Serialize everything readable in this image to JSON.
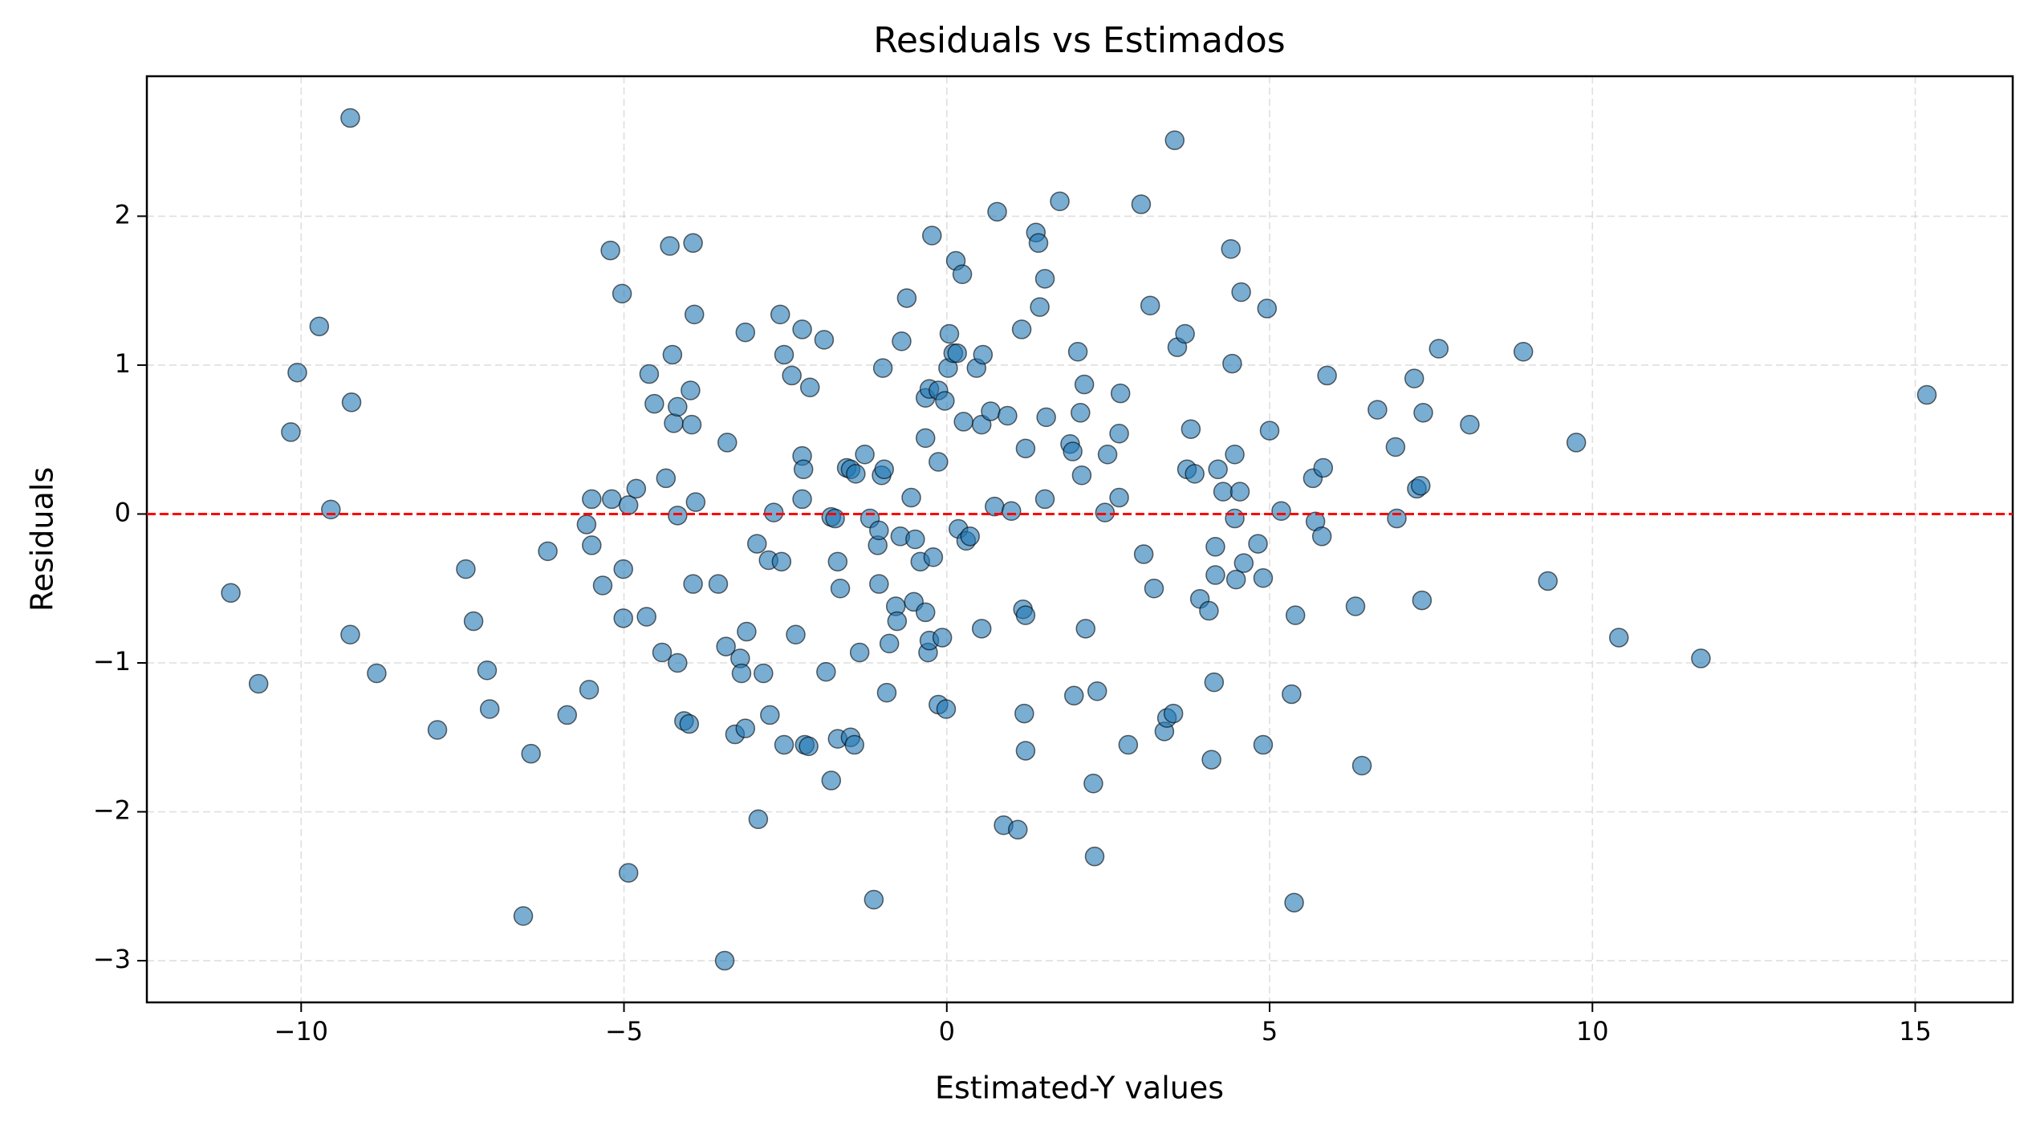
{
  "chart_data": {
    "type": "scatter",
    "title": "Residuals vs Estimados",
    "xlabel": "Estimated-Y values",
    "ylabel": "Residuals",
    "xlim": [
      -12.39,
      16.51
    ],
    "ylim": [
      -3.28,
      2.94
    ],
    "xticks": [
      {
        "value": -10,
        "label": "−10"
      },
      {
        "value": -5,
        "label": "−5"
      },
      0,
      5,
      10,
      15
    ],
    "yticks": [
      {
        "value": -3,
        "label": "−3"
      },
      {
        "value": -2,
        "label": "−2"
      },
      {
        "value": -1,
        "label": "−1"
      },
      0,
      1,
      2
    ],
    "grid": true,
    "hline": 0,
    "hline_color": "#ff0000",
    "series": [
      {
        "color": "#1f77b4",
        "x": [
          -11.09,
          -10.66,
          -10.16,
          -10.06,
          -9.72,
          -9.54,
          -9.24,
          -9.22,
          -9.24,
          -8.83,
          -7.89,
          -7.45,
          -7.33,
          -7.12,
          -7.08,
          -6.44,
          -6.56,
          -6.18,
          -5.88,
          -5.58,
          -5.5,
          -5.5,
          -5.54,
          -5.33,
          -5.21,
          -5.19,
          -5.03,
          -5.01,
          -5.01,
          -4.93,
          -4.93,
          -4.81,
          -4.65,
          -4.61,
          -4.53,
          -4.41,
          -4.35,
          -4.29,
          -4.25,
          -4.23,
          -4.17,
          -4.17,
          -4.17,
          -4.07,
          -3.99,
          -3.97,
          -3.95,
          -3.93,
          -3.91,
          -3.89,
          -3.93,
          -3.54,
          -3.4,
          -3.42,
          -3.44,
          -3.28,
          -3.2,
          -3.18,
          -3.12,
          -3.1,
          -3.12,
          -2.94,
          -2.92,
          -2.84,
          -2.76,
          -2.74,
          -2.68,
          -2.58,
          -2.56,
          -2.52,
          -2.52,
          -2.4,
          -2.34,
          -2.24,
          -2.24,
          -2.24,
          -2.22,
          -2.2,
          -2.12,
          -2.14,
          -1.9,
          -1.87,
          -1.79,
          -1.79,
          -1.73,
          -1.69,
          -1.69,
          -1.65,
          -1.55,
          -1.49,
          -1.49,
          -1.43,
          -1.41,
          -1.35,
          -1.27,
          -1.19,
          -1.13,
          -1.07,
          -1.05,
          -1.05,
          -1.01,
          -0.99,
          -0.97,
          -0.93,
          -0.89,
          -0.79,
          -0.77,
          -0.7,
          -0.72,
          -0.62,
          -0.55,
          -0.51,
          -0.49,
          -0.41,
          -0.33,
          -0.33,
          -0.33,
          -0.29,
          -0.27,
          -0.27,
          -0.23,
          -0.21,
          -0.13,
          -0.13,
          -0.13,
          -0.07,
          -0.03,
          -0.01,
          0.02,
          0.04,
          0.1,
          0.14,
          0.16,
          0.18,
          0.24,
          0.26,
          0.3,
          0.36,
          0.46,
          0.54,
          0.54,
          0.56,
          0.68,
          0.74,
          0.78,
          0.88,
          0.94,
          1.0,
          1.1,
          1.16,
          1.18,
          1.22,
          1.22,
          1.2,
          1.22,
          1.38,
          1.42,
          1.44,
          1.52,
          1.54,
          1.52,
          1.75,
          1.91,
          1.95,
          1.97,
          2.03,
          2.07,
          2.09,
          2.13,
          2.15,
          2.27,
          2.29,
          2.33,
          2.45,
          2.49,
          2.67,
          2.69,
          2.67,
          2.81,
          3.01,
          3.05,
          3.15,
          3.21,
          3.37,
          3.41,
          3.51,
          3.53,
          3.57,
          3.69,
          3.72,
          3.78,
          3.84,
          3.92,
          4.06,
          4.1,
          4.14,
          4.16,
          4.16,
          4.2,
          4.28,
          4.4,
          4.42,
          4.46,
          4.46,
          4.48,
          4.54,
          4.56,
          4.6,
          4.82,
          4.9,
          4.9,
          4.96,
          5.0,
          5.18,
          5.34,
          5.38,
          5.4,
          5.67,
          5.71,
          5.81,
          5.83,
          5.89,
          6.33,
          6.43,
          6.67,
          6.95,
          6.97,
          7.24,
          7.28,
          7.34,
          7.38,
          7.36,
          7.62,
          8.1,
          8.93,
          9.31,
          9.75,
          10.41,
          11.68,
          15.18
        ],
        "values": [
          -0.53,
          -1.14,
          0.55,
          0.95,
          1.26,
          0.03,
          2.66,
          0.75,
          -0.81,
          -1.07,
          -1.45,
          -0.37,
          -0.72,
          -1.05,
          -1.31,
          -1.61,
          -2.7,
          -0.25,
          -1.35,
          -0.07,
          0.1,
          -0.21,
          -1.18,
          -0.48,
          1.77,
          0.1,
          1.48,
          -0.37,
          -0.7,
          0.06,
          -2.41,
          0.17,
          -0.69,
          0.94,
          0.74,
          -0.93,
          0.24,
          1.8,
          1.07,
          0.61,
          0.72,
          -0.01,
          -1.0,
          -1.39,
          -1.41,
          0.83,
          0.6,
          1.82,
          1.34,
          0.08,
          -0.47,
          -0.47,
          0.48,
          -0.89,
          -3.0,
          -1.48,
          -0.97,
          -1.07,
          1.22,
          -0.79,
          -1.44,
          -0.2,
          -2.05,
          -1.07,
          -0.31,
          -1.35,
          0.01,
          1.34,
          -0.32,
          1.07,
          -1.55,
          0.93,
          -0.81,
          1.24,
          0.39,
          0.1,
          0.3,
          -1.55,
          0.85,
          -1.56,
          1.17,
          -1.06,
          -1.79,
          -0.02,
          -0.03,
          -0.32,
          -1.51,
          -0.5,
          0.31,
          0.3,
          -1.5,
          -1.55,
          0.27,
          -0.93,
          0.4,
          -0.03,
          -2.59,
          -0.21,
          -0.11,
          -0.47,
          0.26,
          0.98,
          0.3,
          -1.2,
          -0.87,
          -0.62,
          -0.72,
          1.16,
          -0.15,
          1.45,
          0.11,
          -0.59,
          -0.17,
          -0.32,
          0.51,
          0.78,
          -0.66,
          -0.93,
          0.84,
          -0.85,
          1.87,
          -0.29,
          0.83,
          0.35,
          -1.28,
          -0.83,
          0.76,
          -1.31,
          0.98,
          1.21,
          1.08,
          1.7,
          1.08,
          -0.1,
          1.61,
          0.62,
          -0.18,
          -0.15,
          0.98,
          -0.77,
          0.6,
          1.07,
          0.69,
          0.05,
          2.03,
          -2.09,
          0.66,
          0.02,
          -2.12,
          1.24,
          -0.64,
          0.44,
          -0.68,
          -1.34,
          -1.59,
          1.89,
          1.82,
          1.39,
          1.58,
          0.65,
          0.1,
          2.1,
          0.47,
          0.42,
          -1.22,
          1.09,
          0.68,
          0.26,
          0.87,
          -0.77,
          -1.81,
          -2.3,
          -1.19,
          0.01,
          0.4,
          0.54,
          0.81,
          0.11,
          -1.55,
          2.08,
          -0.27,
          1.4,
          -0.5,
          -1.46,
          -1.37,
          -1.34,
          2.51,
          1.12,
          1.21,
          0.3,
          0.57,
          0.27,
          -0.57,
          -0.65,
          -1.65,
          -1.13,
          -0.41,
          -0.22,
          0.3,
          0.15,
          1.78,
          1.01,
          0.4,
          -0.03,
          -0.44,
          0.15,
          1.49,
          -0.33,
          -0.2,
          -1.55,
          -0.43,
          1.38,
          0.56,
          0.02,
          -1.21,
          -2.61,
          -0.68,
          0.24,
          -0.05,
          -0.15,
          0.31,
          0.93,
          -0.62,
          -1.69,
          0.7,
          0.45,
          -0.03,
          0.91,
          0.17,
          0.19,
          0.68,
          -0.58,
          1.11,
          0.6,
          1.09,
          -0.45,
          0.48,
          -0.83,
          -0.97,
          0.8
        ]
      }
    ]
  }
}
